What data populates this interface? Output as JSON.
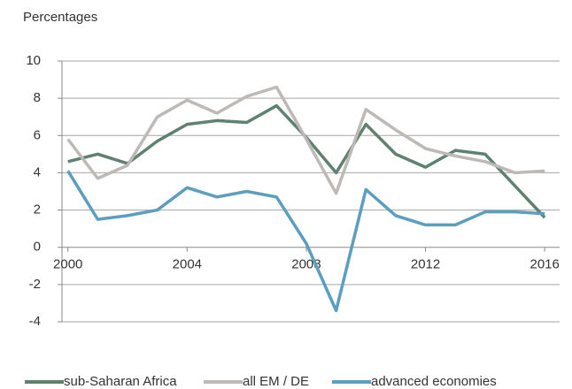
{
  "chart_data": {
    "type": "line",
    "y_label": "Percentages",
    "x": [
      2000,
      2001,
      2002,
      2003,
      2004,
      2005,
      2006,
      2007,
      2008,
      2009,
      2010,
      2011,
      2012,
      2013,
      2014,
      2015,
      2016
    ],
    "series": [
      {
        "name": "sub-Saharan Africa",
        "color": "#5f8170",
        "values": [
          4.6,
          5.0,
          4.5,
          5.7,
          6.6,
          6.8,
          6.7,
          7.6,
          5.9,
          4.0,
          6.6,
          5.0,
          4.3,
          5.2,
          5.0,
          3.3,
          1.6
        ]
      },
      {
        "name": "all EM / DE",
        "color": "#bdb9b7",
        "values": [
          5.8,
          3.7,
          4.4,
          7.0,
          7.9,
          7.2,
          8.1,
          8.6,
          5.8,
          2.9,
          7.4,
          6.3,
          5.3,
          4.9,
          4.6,
          4.0,
          4.1
        ]
      },
      {
        "name": "advanced economies",
        "color": "#5b9ec0",
        "values": [
          4.1,
          1.5,
          1.7,
          2.0,
          3.2,
          2.7,
          3.0,
          2.7,
          0.2,
          -3.4,
          3.1,
          1.7,
          1.2,
          1.2,
          1.9,
          1.9,
          1.8
        ]
      }
    ],
    "xlim": [
      1999.8,
      2016.5
    ],
    "xticks": [
      2000,
      2004,
      2008,
      2012,
      2016
    ],
    "ylim": [
      -4,
      10
    ],
    "yticks": [
      -4,
      -2,
      0,
      2,
      4,
      6,
      8,
      10
    ],
    "grid": true,
    "legend": "bottom"
  }
}
